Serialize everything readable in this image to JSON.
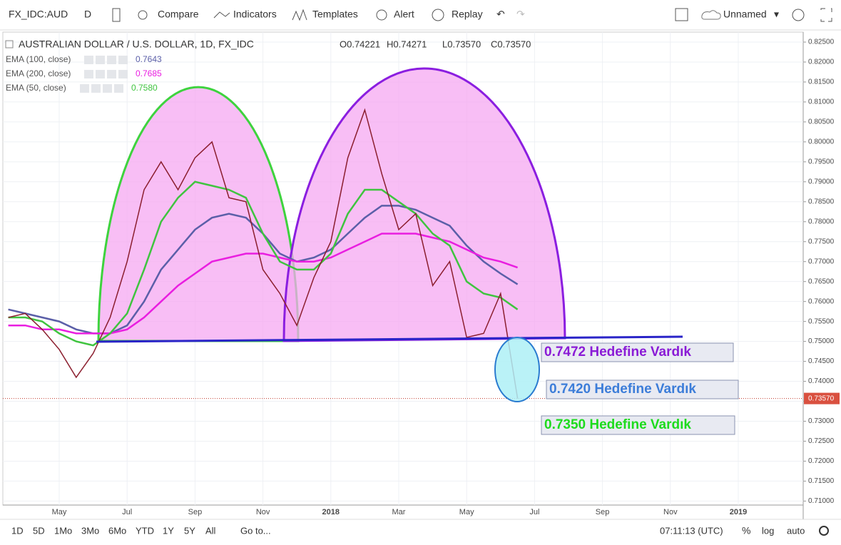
{
  "toolbar": {
    "symbol": "FX_IDC:AUD",
    "interval": "D",
    "compare": "Compare",
    "indicators": "Indicators",
    "templates": "Templates",
    "alert": "Alert",
    "replay": "Replay",
    "layout_name": "Unnamed"
  },
  "chart_data": {
    "type": "line",
    "title": "AUSTRALIAN DOLLAR / U.S. DOLLAR, 1D, FX_IDC",
    "ohlc": [
      "O0.74221",
      "H0.74271",
      "L0.73570",
      "C0.73570"
    ],
    "color": "#8b1e2e",
    "categories": [
      null,
      null,
      null,
      "May",
      null,
      null,
      null,
      "Jul",
      null,
      null,
      null,
      "Sep",
      null,
      null,
      null,
      "Nov",
      null,
      null,
      null,
      "2018",
      null,
      null,
      null,
      "Mar",
      null,
      null,
      null,
      "May",
      null,
      null,
      null,
      "Jul",
      null,
      null,
      null,
      "Sep",
      null,
      null,
      null,
      "Nov",
      null,
      null,
      null,
      "2019",
      null,
      null
    ],
    "values": [
      0.756,
      0.757,
      0.753,
      0.748,
      0.741,
      0.747,
      0.756,
      0.77,
      0.788,
      0.795,
      0.788,
      0.796,
      0.8,
      0.786,
      0.785,
      0.768,
      0.762,
      0.754,
      0.766,
      0.775,
      0.796,
      0.808,
      0.792,
      0.778,
      0.782,
      0.764,
      0.77,
      0.751,
      0.752,
      0.762,
      0.7357,
      null,
      null,
      null,
      null,
      null,
      null,
      null,
      null,
      null,
      null,
      null,
      null,
      null,
      null,
      null
    ],
    "series": [
      {
        "name": "EMA (100, close)",
        "legend_value": "0.7643",
        "color": "#5b5fa8",
        "values": [
          0.758,
          0.757,
          0.756,
          0.755,
          0.753,
          0.752,
          0.752,
          0.754,
          0.76,
          0.768,
          0.773,
          0.778,
          0.781,
          0.782,
          0.781,
          0.777,
          0.772,
          0.77,
          0.771,
          0.773,
          0.777,
          0.781,
          0.784,
          0.784,
          0.783,
          0.781,
          0.779,
          0.774,
          0.77,
          0.767,
          0.7643,
          null,
          null,
          null,
          null,
          null,
          null,
          null,
          null,
          null,
          null,
          null,
          null,
          null,
          null,
          null
        ]
      },
      {
        "name": "EMA (200, close)",
        "legend_value": "0.7685",
        "color": "#e91ee0",
        "values": [
          0.754,
          0.754,
          0.753,
          0.753,
          0.752,
          0.752,
          0.752,
          0.753,
          0.756,
          0.76,
          0.764,
          0.767,
          0.77,
          0.771,
          0.772,
          0.772,
          0.771,
          0.77,
          0.77,
          0.771,
          0.773,
          0.775,
          0.777,
          0.777,
          0.777,
          0.776,
          0.775,
          0.773,
          0.771,
          0.77,
          0.7685,
          null,
          null,
          null,
          null,
          null,
          null,
          null,
          null,
          null,
          null,
          null,
          null,
          null,
          null,
          null
        ]
      },
      {
        "name": "EMA (50, close)",
        "legend_value": "0.7580",
        "color": "#3fc43f",
        "values": [
          0.756,
          0.756,
          0.755,
          0.752,
          0.75,
          0.749,
          0.752,
          0.757,
          0.768,
          0.78,
          0.786,
          0.79,
          0.789,
          0.788,
          0.786,
          0.777,
          0.77,
          0.768,
          0.768,
          0.772,
          0.782,
          0.788,
          0.788,
          0.785,
          0.782,
          0.777,
          0.774,
          0.765,
          0.762,
          0.761,
          0.758,
          null,
          null,
          null,
          null,
          null,
          null,
          null,
          null,
          null,
          null,
          null,
          null,
          null,
          null,
          null
        ]
      }
    ],
    "ylim": [
      0.709,
      0.8275
    ],
    "yticks": [
      {
        "value": 0.71,
        "label": "0.71000"
      },
      {
        "value": 0.715,
        "label": "0.71500"
      },
      {
        "value": 0.72,
        "label": "0.72000"
      },
      {
        "value": 0.725,
        "label": "0.72500"
      },
      {
        "value": 0.73,
        "label": "0.73000"
      },
      {
        "value": 0.735,
        "label": "0.73500"
      },
      {
        "value": 0.74,
        "label": "0.74000"
      },
      {
        "value": 0.745,
        "label": "0.74500"
      },
      {
        "value": 0.75,
        "label": "0.75000"
      },
      {
        "value": 0.755,
        "label": "0.75500"
      },
      {
        "value": 0.76,
        "label": "0.76000"
      },
      {
        "value": 0.765,
        "label": "0.76500"
      },
      {
        "value": 0.77,
        "label": "0.77000"
      },
      {
        "value": 0.775,
        "label": "0.77500"
      },
      {
        "value": 0.78,
        "label": "0.78000"
      },
      {
        "value": 0.785,
        "label": "0.78500"
      },
      {
        "value": 0.79,
        "label": "0.79000"
      },
      {
        "value": 0.795,
        "label": "0.79500"
      },
      {
        "value": 0.8,
        "label": "0.80000"
      },
      {
        "value": 0.805,
        "label": "0.80500"
      },
      {
        "value": 0.81,
        "label": "0.81000"
      },
      {
        "value": 0.815,
        "label": "0.81500"
      },
      {
        "value": 0.82,
        "label": "0.82000"
      },
      {
        "value": 0.825,
        "label": "0.82500"
      }
    ],
    "last_price": {
      "value": 0.7357,
      "label": "0.73570"
    },
    "grid": true,
    "annotations": [
      "0.7472 Hedefine Vardık",
      "0.7420 Hedefine Vardık",
      "0.7350 Hedefine Vardık"
    ]
  },
  "bottom_bar": {
    "ranges": [
      "1D",
      "5D",
      "1Mo",
      "3Mo",
      "6Mo",
      "YTD",
      "1Y",
      "5Y",
      "All"
    ],
    "goto": "Go to...",
    "clock": "07:11:13 (UTC)",
    "percent": "%",
    "log": "log",
    "auto": "auto"
  }
}
